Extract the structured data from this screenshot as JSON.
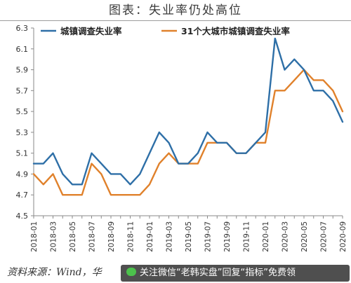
{
  "figure_title": "图表：失业率仍处高位",
  "source_text": "资料来源：Wind，华",
  "banner_text": "关注微信“老韩实盘”回复“指标”免费领",
  "chart_data": {
    "type": "line",
    "title": "",
    "xlabel": "",
    "ylabel": "",
    "ylim": [
      4.5,
      6.3
    ],
    "yticks": [
      4.5,
      4.7,
      4.9,
      5.1,
      5.3,
      5.5,
      5.7,
      5.9,
      6.1,
      6.3
    ],
    "ytick_labels": [
      "4.5",
      "4.7",
      "4.9",
      "5.1",
      "5.3",
      "5.5",
      "5.7",
      "5.9",
      "6.1",
      "6.3"
    ],
    "x": [
      "2018-01",
      "2018-02",
      "2018-03",
      "2018-04",
      "2018-05",
      "2018-06",
      "2018-07",
      "2018-08",
      "2018-09",
      "2018-10",
      "2018-11",
      "2018-12",
      "2019-01",
      "2019-02",
      "2019-03",
      "2019-04",
      "2019-05",
      "2019-06",
      "2019-07",
      "2019-08",
      "2019-09",
      "2019-10",
      "2019-11",
      "2019-12",
      "2020-01",
      "2020-02",
      "2020-03",
      "2020-04",
      "2020-05",
      "2020-06",
      "2020-07",
      "2020-08",
      "2020-09"
    ],
    "xtick_labels": [
      "2018-01",
      "2018-03",
      "2018-05",
      "2018-07",
      "2018-09",
      "2018-11",
      "2019-01",
      "2019-03",
      "2019-05",
      "2019-07",
      "2019-09",
      "2019-11",
      "2020-01",
      "2020-03",
      "2020-05",
      "2020-07",
      "2020-09"
    ],
    "grid": false,
    "legend_position": "top-left",
    "series": [
      {
        "name": "城镇调查失业率",
        "color": "#2e6fa7",
        "values": [
          5.0,
          5.0,
          5.1,
          4.9,
          4.8,
          4.8,
          5.1,
          5.0,
          4.9,
          4.9,
          4.8,
          4.9,
          5.1,
          5.3,
          5.2,
          5.0,
          5.0,
          5.1,
          5.3,
          5.2,
          5.2,
          5.1,
          5.1,
          5.2,
          5.3,
          6.2,
          5.9,
          6.0,
          5.9,
          5.7,
          5.7,
          5.6,
          5.4
        ]
      },
      {
        "name": "31个大城市城镇调查失业率",
        "color": "#e0812b",
        "values": [
          4.9,
          4.8,
          4.9,
          4.7,
          4.7,
          4.7,
          5.0,
          4.9,
          4.7,
          4.7,
          4.7,
          4.7,
          4.8,
          5.0,
          5.1,
          5.0,
          5.0,
          5.0,
          5.2,
          5.2,
          5.2,
          5.1,
          5.1,
          5.2,
          5.2,
          5.7,
          5.7,
          5.8,
          5.9,
          5.8,
          5.8,
          5.7,
          5.5
        ]
      }
    ]
  }
}
